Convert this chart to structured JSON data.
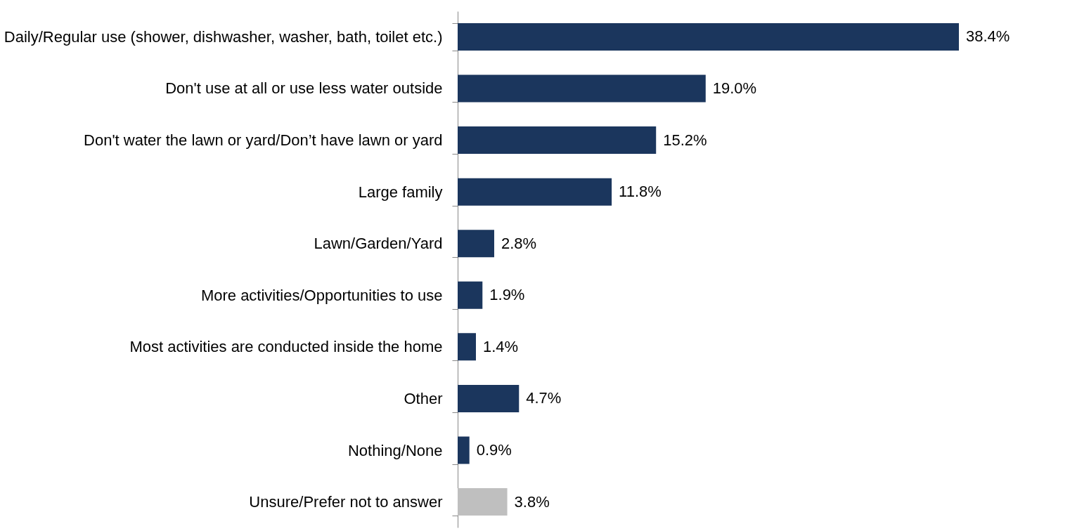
{
  "chart_data": {
    "type": "bar",
    "orientation": "horizontal",
    "categories": [
      "Daily/Regular use (shower, dishwasher, washer, bath, toilet etc.)",
      "Don't use at all or use less water outside",
      "Don't water the lawn or yard/Don’t have lawn or yard",
      "Large family",
      "Lawn/Garden/Yard",
      "More activities/Opportunities to use",
      "Most activities are conducted inside the home",
      "Other",
      "Nothing/None",
      "Unsure/Prefer not to answer"
    ],
    "values": [
      38.4,
      19.0,
      15.2,
      11.8,
      2.8,
      1.9,
      1.4,
      4.7,
      0.9,
      3.8
    ],
    "colors": [
      "#1b365d",
      "#1b365d",
      "#1b365d",
      "#1b365d",
      "#1b365d",
      "#1b365d",
      "#1b365d",
      "#1b365d",
      "#1b365d",
      "#bfbfbf"
    ],
    "value_labels": [
      "38.4%",
      "19.0%",
      "15.2%",
      "11.8%",
      "2.8%",
      "1.9%",
      "1.4%",
      "4.7%",
      "0.9%",
      "3.8%"
    ],
    "tick_labels": "y",
    "grid": false
  }
}
